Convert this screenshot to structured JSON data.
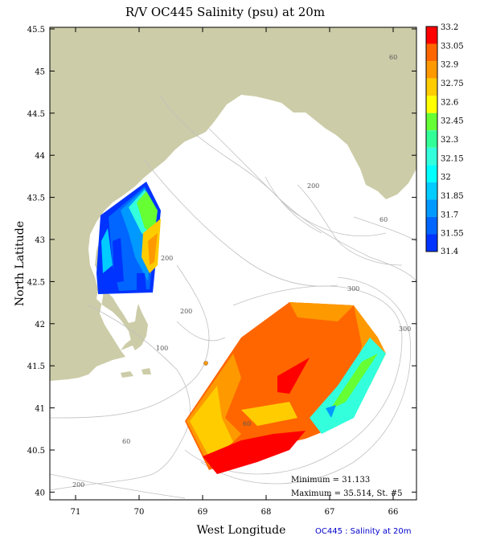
{
  "title": "R/V OC445 Salinity (psu) at 20m",
  "x_label": "West Longitude",
  "y_label": "North Latitude",
  "x_ticks": [
    "71",
    "70",
    "69",
    "68",
    "67",
    "66"
  ],
  "y_ticks": [
    "45.5",
    "45",
    "44.5",
    "44",
    "43.5",
    "43",
    "42.5",
    "42",
    "41.5",
    "41",
    "40.5",
    "40"
  ],
  "colorbar": {
    "labels": [
      "33.2",
      "33.05",
      "32.9",
      "32.75",
      "32.6",
      "32.45",
      "32.3",
      "32.15",
      "32",
      "31.85",
      "31.7",
      "31.55",
      "31.4"
    ],
    "colors": [
      "#ff0000",
      "#ff6600",
      "#ff9900",
      "#ffcc00",
      "#ffff00",
      "#66ff33",
      "#33ff99",
      "#33ffdd",
      "#00ffff",
      "#00ccff",
      "#0099ff",
      "#0066ff",
      "#0033ff"
    ]
  },
  "contour_labels": [
    "60",
    "200",
    "60",
    "200",
    "300",
    "200",
    "300",
    "100",
    "60",
    "60",
    "200"
  ],
  "stats": {
    "minimum": "Minimum = 31.133",
    "maximum": "Maximum = 35.514, St. #5"
  },
  "credit": "OC445 : Salinity at 20m",
  "colors": {
    "land": "#cccca8",
    "ocean": "#ffffff",
    "contour": "#c0c0c0"
  }
}
